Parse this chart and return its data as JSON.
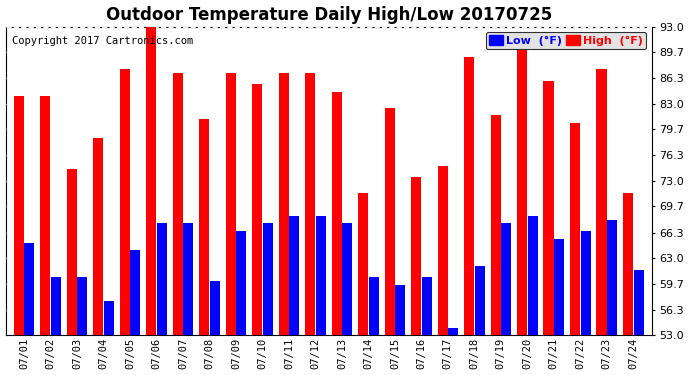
{
  "title": "Outdoor Temperature Daily High/Low 20170725",
  "copyright": "Copyright 2017 Cartronics.com",
  "legend_low": "Low  (°F)",
  "legend_high": "High  (°F)",
  "dates": [
    "07/01",
    "07/02",
    "07/03",
    "07/04",
    "07/05",
    "07/06",
    "07/07",
    "07/08",
    "07/09",
    "07/10",
    "07/11",
    "07/12",
    "07/13",
    "07/14",
    "07/15",
    "07/16",
    "07/17",
    "07/18",
    "07/19",
    "07/20",
    "07/21",
    "07/22",
    "07/23",
    "07/24"
  ],
  "highs": [
    84.0,
    84.0,
    74.5,
    78.5,
    87.5,
    93.5,
    87.0,
    81.0,
    87.0,
    85.5,
    87.0,
    87.0,
    84.5,
    71.5,
    82.5,
    73.5,
    75.0,
    89.0,
    81.5,
    90.0,
    86.0,
    80.5,
    87.5,
    71.5
  ],
  "lows": [
    65.0,
    60.5,
    60.5,
    57.5,
    64.0,
    67.5,
    67.5,
    60.0,
    66.5,
    67.5,
    68.5,
    68.5,
    67.5,
    60.5,
    59.5,
    60.5,
    54.0,
    62.0,
    67.5,
    68.5,
    65.5,
    66.5,
    68.0,
    61.5
  ],
  "ymin": 53.0,
  "ymax": 93.0,
  "yticks": [
    53.0,
    56.3,
    59.7,
    63.0,
    66.3,
    69.7,
    73.0,
    76.3,
    79.7,
    83.0,
    86.3,
    89.7,
    93.0
  ],
  "bar_color_high": "#ff0000",
  "bar_color_low": "#0000ff",
  "bg_color": "#ffffff",
  "grid_color": "#bbbbbb",
  "title_fontsize": 12,
  "copyright_fontsize": 7.5
}
